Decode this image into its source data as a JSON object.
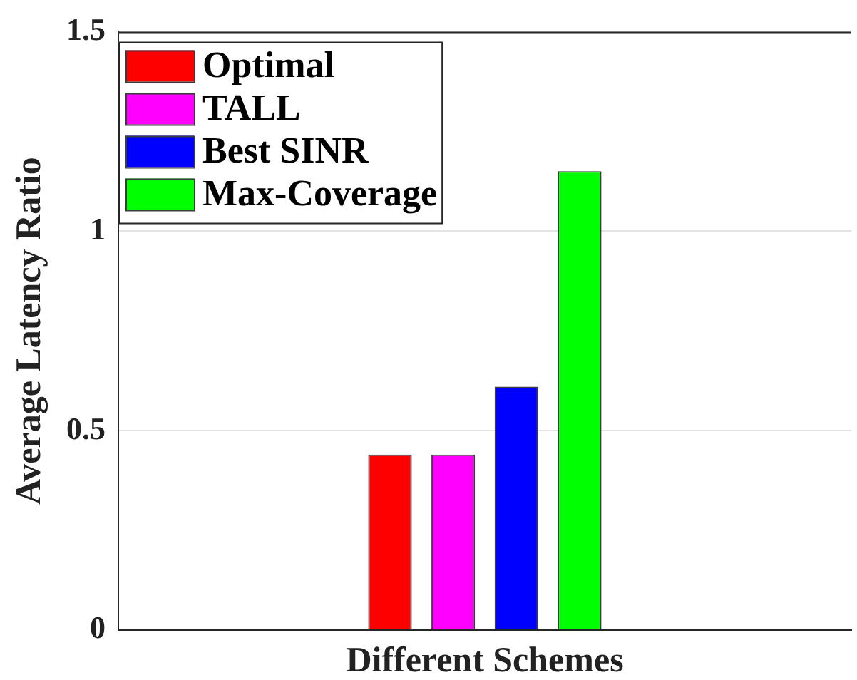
{
  "chart_data": {
    "type": "bar",
    "xlabel": "Different Schemes",
    "ylabel": "Average Latency Ratio",
    "categories": [
      null
    ],
    "series": [
      {
        "name": "Optimal",
        "color": "#ff0000",
        "values": [
          0.44
        ]
      },
      {
        "name": "TALL",
        "color": "#ff00ff",
        "values": [
          0.44
        ]
      },
      {
        "name": "Best SINR",
        "color": "#0000ff",
        "values": [
          0.61
        ]
      },
      {
        "name": "Max-Coverage",
        "color": "#00ff00",
        "values": [
          1.15
        ]
      }
    ],
    "ylim": [
      0,
      1.5
    ],
    "yticks": [
      0,
      0.5,
      1,
      1.5
    ],
    "grid": "y",
    "legend": "top left"
  }
}
